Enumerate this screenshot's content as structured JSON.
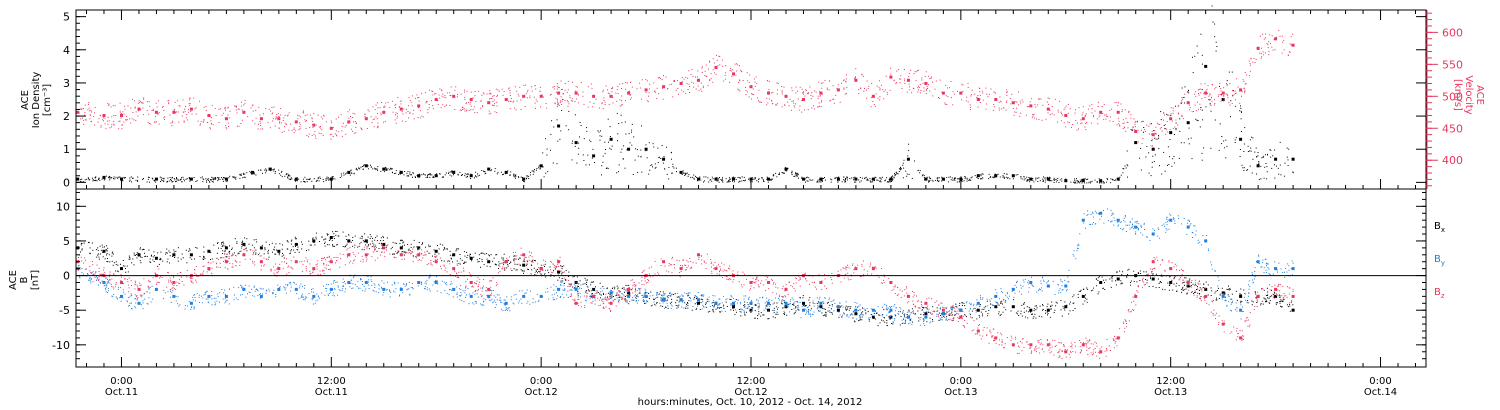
{
  "colors": {
    "black": "#000000",
    "pink": "#e8365d",
    "blue": "#1e7fe0"
  },
  "x_axis": {
    "title": "hours:minutes, Oct. 10, 2012 - Oct. 14, 2012",
    "range_hours": [
      -2.6,
      74.6
    ],
    "ticks": [
      {
        "hour": 0,
        "time": "0:00",
        "date": "Oct.11"
      },
      {
        "hour": 12,
        "time": "12:00",
        "date": "Oct.11"
      },
      {
        "hour": 24,
        "time": "0:00",
        "date": "Oct.12"
      },
      {
        "hour": 36,
        "time": "12:00",
        "date": "Oct.12"
      },
      {
        "hour": 48,
        "time": "0:00",
        "date": "Oct.13"
      },
      {
        "hour": 60,
        "time": "12:00",
        "date": "Oct.13"
      },
      {
        "hour": 72,
        "time": "0:00",
        "date": "Oct.14"
      }
    ]
  },
  "chart_data": [
    {
      "type": "scatter",
      "panel": "top",
      "ylabel_left": [
        "ACE",
        "Ion Density",
        "[cm⁻³]"
      ],
      "ylabel_right": [
        "ACE",
        "Velocity",
        "[km/s]"
      ],
      "ylim_left": [
        -0.2,
        5.2
      ],
      "ylim_right": [
        355,
        635
      ],
      "left_ticks": [
        0,
        1,
        2,
        3,
        4,
        5
      ],
      "right_ticks": [
        400,
        450,
        500,
        550,
        600
      ],
      "series": [
        {
          "axis": "left",
          "color": "#000000",
          "x": [
            -2.5,
            -1,
            0,
            2,
            4,
            6,
            7.5,
            8.5,
            10,
            12,
            13,
            14,
            15,
            16,
            17,
            18,
            19,
            20,
            21,
            22,
            23,
            24,
            25,
            26,
            27,
            28,
            29,
            30,
            31,
            32,
            33,
            34,
            35,
            36,
            37,
            38,
            39,
            40,
            41,
            42,
            43,
            44,
            45,
            46,
            47,
            48,
            49,
            50,
            51,
            52,
            53,
            54,
            55,
            56,
            57,
            58,
            59,
            60,
            61,
            62,
            63,
            64,
            65,
            66,
            67
          ],
          "y": [
            0.1,
            0.15,
            0.1,
            0.1,
            0.1,
            0.1,
            0.3,
            0.4,
            0.1,
            0.1,
            0.3,
            0.5,
            0.4,
            0.3,
            0.2,
            0.2,
            0.3,
            0.2,
            0.4,
            0.3,
            0.1,
            0.5,
            1.7,
            1.2,
            0.8,
            1.3,
            1.0,
            1.0,
            0.7,
            0.3,
            0.1,
            0.1,
            0.1,
            0.1,
            0.1,
            0.4,
            0.1,
            0.1,
            0.1,
            0.1,
            0.1,
            0.1,
            0.7,
            0.1,
            0.1,
            0.1,
            0.2,
            0.2,
            0.2,
            0.1,
            0.1,
            0.05,
            0.05,
            0.05,
            0.1,
            1.2,
            1.0,
            1.5,
            1.8,
            3.5,
            2.5,
            1.3,
            0.5,
            0.7,
            0.7
          ]
        },
        {
          "axis": "right",
          "color": "#e8365d",
          "x": [
            -2.5,
            -1,
            0,
            1,
            2,
            3,
            4,
            5,
            6,
            7,
            8,
            9,
            10,
            11,
            12,
            13,
            14,
            15,
            16,
            17,
            18,
            19,
            20,
            21,
            22,
            23,
            24,
            25,
            26,
            27,
            28,
            29,
            30,
            31,
            32,
            33,
            34,
            35,
            36,
            37,
            38,
            39,
            40,
            41,
            42,
            43,
            44,
            45,
            46,
            47,
            48,
            49,
            50,
            51,
            52,
            53,
            54,
            55,
            56,
            57,
            58,
            59,
            60,
            61,
            62,
            63,
            64,
            65,
            66,
            67
          ],
          "y": [
            475,
            470,
            470,
            480,
            475,
            475,
            480,
            470,
            465,
            475,
            465,
            465,
            460,
            455,
            450,
            460,
            465,
            475,
            480,
            485,
            495,
            500,
            495,
            490,
            495,
            500,
            500,
            505,
            505,
            500,
            500,
            505,
            510,
            515,
            520,
            525,
            545,
            535,
            515,
            505,
            500,
            495,
            505,
            510,
            525,
            500,
            530,
            525,
            520,
            505,
            505,
            495,
            495,
            490,
            485,
            480,
            470,
            465,
            475,
            475,
            445,
            440,
            465,
            490,
            505,
            505,
            510,
            575,
            590,
            580
          ]
        }
      ]
    },
    {
      "type": "scatter",
      "panel": "bottom",
      "ylabel_left": [
        "ACE",
        "B",
        "[nT]"
      ],
      "ylim": [
        -13.2,
        12.5
      ],
      "left_ticks": [
        -10,
        -5,
        0,
        5,
        10
      ],
      "zero_line": true,
      "series": [
        {
          "name": "Bx",
          "color": "#000000",
          "x": [
            -2.5,
            -1,
            0,
            1,
            2,
            3,
            4,
            5,
            6,
            7,
            8,
            9,
            10,
            11,
            12,
            13,
            14,
            15,
            16,
            17,
            18,
            19,
            20,
            21,
            22,
            23,
            24,
            25,
            26,
            27,
            28,
            29,
            30,
            31,
            32,
            33,
            34,
            35,
            36,
            37,
            38,
            39,
            40,
            41,
            42,
            43,
            44,
            45,
            46,
            47,
            48,
            49,
            50,
            51,
            52,
            53,
            54,
            55,
            56,
            57,
            58,
            59,
            60,
            61,
            62,
            63,
            64,
            65,
            66,
            67
          ],
          "y": [
            4,
            3.5,
            1,
            3,
            2.5,
            3,
            3,
            3.5,
            4,
            4.5,
            4,
            3.5,
            4.5,
            5,
            5.5,
            5,
            5,
            4.5,
            4,
            4,
            3.5,
            3,
            2.5,
            2,
            2,
            1.5,
            1,
            0.5,
            -1,
            -2,
            -2.5,
            -2.5,
            -3,
            -3.5,
            -3.5,
            -4,
            -4,
            -4.5,
            -5,
            -5,
            -4.5,
            -4,
            -4.5,
            -5,
            -5.5,
            -6,
            -6,
            -6,
            -5.5,
            -5.5,
            -5,
            -5,
            -4.5,
            -4.5,
            -5,
            -5,
            -4.5,
            -3,
            -1,
            -0.5,
            0,
            -0.5,
            -1,
            -1.5,
            -2,
            -2.5,
            -3,
            -3,
            -3,
            -5
          ]
        },
        {
          "name": "By",
          "color": "#1e7fe0",
          "x": [
            -2.5,
            -1,
            0,
            1,
            2,
            3,
            4,
            5,
            6,
            7,
            8,
            9,
            10,
            11,
            12,
            13,
            14,
            15,
            16,
            17,
            18,
            19,
            20,
            21,
            22,
            23,
            24,
            25,
            26,
            27,
            28,
            29,
            30,
            31,
            32,
            33,
            34,
            35,
            36,
            37,
            38,
            39,
            40,
            41,
            42,
            43,
            44,
            45,
            46,
            47,
            48,
            49,
            50,
            51,
            52,
            53,
            54,
            55,
            56,
            57,
            58,
            59,
            60,
            61,
            62,
            63,
            64,
            65,
            66,
            67
          ],
          "y": [
            1,
            -1,
            -3,
            -4,
            -2,
            -3,
            -4,
            -3,
            -3,
            -2,
            -3,
            -2,
            -2,
            -3,
            -2,
            -1,
            -1,
            -2,
            -2,
            -1,
            -1,
            -2,
            -3,
            -3,
            -4,
            -3,
            -3,
            -2,
            -2,
            -3,
            -2.5,
            -3,
            -3,
            -3.5,
            -3.5,
            -3.5,
            -4,
            -4,
            -4,
            -4,
            -4,
            -5,
            -4,
            -4.5,
            -5,
            -5,
            -5,
            -6,
            -6,
            -5.5,
            -5,
            -4,
            -3,
            -2,
            -1,
            -1.5,
            -1.5,
            8,
            9,
            8,
            7,
            6,
            8,
            7,
            5,
            -3,
            -5,
            2,
            1,
            1
          ]
        },
        {
          "name": "Bz",
          "color": "#e8365d",
          "x": [
            -2.5,
            -1,
            0,
            1,
            2,
            3,
            4,
            5,
            6,
            7,
            8,
            9,
            10,
            11,
            12,
            13,
            14,
            15,
            16,
            17,
            18,
            19,
            20,
            21,
            22,
            23,
            24,
            25,
            26,
            27,
            28,
            29,
            30,
            31,
            32,
            33,
            34,
            35,
            36,
            37,
            38,
            39,
            40,
            41,
            42,
            43,
            44,
            45,
            46,
            47,
            48,
            49,
            50,
            51,
            52,
            53,
            54,
            55,
            56,
            57,
            58,
            59,
            60,
            61,
            62,
            63,
            64,
            65,
            66,
            67
          ],
          "y": [
            2,
            0,
            -1,
            -2,
            0,
            -1,
            0,
            1,
            2,
            3,
            2,
            1,
            2,
            1,
            2,
            3,
            3,
            4,
            3,
            3,
            2,
            1,
            -1,
            -2,
            2,
            3,
            1,
            2,
            -4,
            -3,
            -4,
            -2,
            0,
            2,
            1,
            3,
            1,
            0,
            -1,
            -1,
            -2,
            0,
            -1,
            0,
            1,
            1,
            -1,
            -3,
            -4,
            -5,
            -6,
            -8,
            -9,
            -10,
            -10,
            -10,
            -11,
            -10,
            -11,
            -9,
            -3,
            2,
            1,
            -1,
            -3,
            -7,
            -9,
            -3,
            -2,
            -3
          ]
        }
      ]
    }
  ],
  "legend": [
    {
      "base": "B",
      "sub": "x",
      "color": "#000000"
    },
    {
      "base": "B",
      "sub": "y",
      "color": "#1e7fe0"
    },
    {
      "base": "B",
      "sub": "z",
      "color": "#e8365d"
    }
  ]
}
